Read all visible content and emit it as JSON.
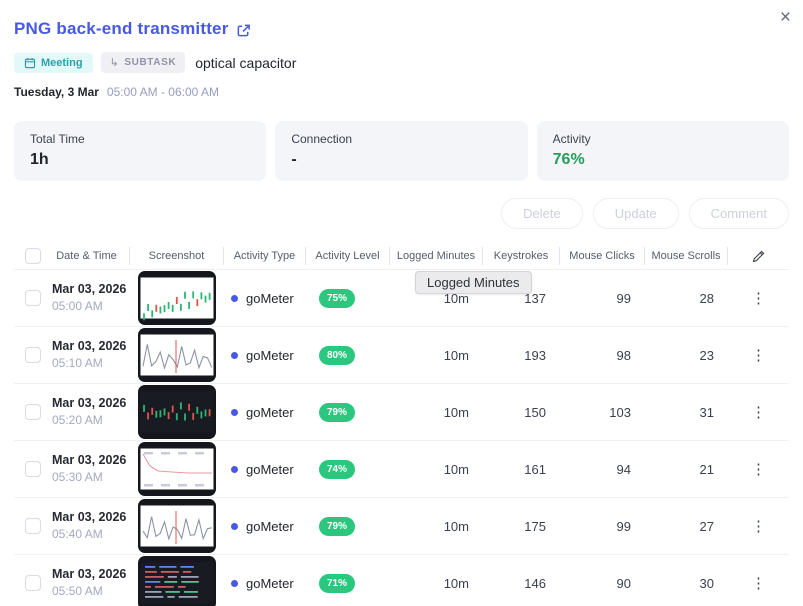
{
  "modal": {
    "title": "PNG back-end transmitter"
  },
  "icons": {
    "close": "×",
    "subtask_arrow": "↳",
    "kebab": "⋮",
    "external_link": "external-link",
    "calendar": "calendar",
    "edit": "pencil"
  },
  "badges": {
    "meeting": "Meeting",
    "subtask": "SUBTASK",
    "subtask_value": "optical capacitor"
  },
  "schedule": {
    "day": "Tuesday, 3 Mar",
    "time_range": "05:00 AM - 06:00 AM"
  },
  "stats": [
    {
      "label": "Total Time",
      "value": "1h"
    },
    {
      "label": "Connection",
      "value": "-"
    },
    {
      "label": "Activity",
      "value": "76%"
    }
  ],
  "actions": {
    "delete": "Delete",
    "update": "Update",
    "comment": "Comment"
  },
  "tooltip": "Logged Minutes",
  "table": {
    "columns": [
      "Date & Time",
      "Screenshot",
      "Activity Type",
      "Activity Level",
      "Logged Minutes",
      "Keystrokes",
      "Mouse Clicks",
      "Mouse Scrolls"
    ],
    "rows": [
      {
        "date": "Mar 03, 2026",
        "time": "05:00 AM",
        "thumb": "light-candlestick-chart",
        "activity_type": "goMeter",
        "activity_level": "75%",
        "logged": "10m",
        "keystrokes": "137",
        "clicks": "99",
        "scrolls": "28"
      },
      {
        "date": "Mar 03, 2026",
        "time": "05:10 AM",
        "thumb": "light-line-chart",
        "activity_type": "goMeter",
        "activity_level": "80%",
        "logged": "10m",
        "keystrokes": "193",
        "clicks": "98",
        "scrolls": "23"
      },
      {
        "date": "Mar 03, 2026",
        "time": "05:20 AM",
        "thumb": "dark-chart",
        "activity_type": "goMeter",
        "activity_level": "79%",
        "logged": "10m",
        "keystrokes": "150",
        "clicks": "103",
        "scrolls": "31"
      },
      {
        "date": "Mar 03, 2026",
        "time": "05:30 AM",
        "thumb": "light-dashboard",
        "activity_type": "goMeter",
        "activity_level": "74%",
        "logged": "10m",
        "keystrokes": "161",
        "clicks": "94",
        "scrolls": "21"
      },
      {
        "date": "Mar 03, 2026",
        "time": "05:40 AM",
        "thumb": "light-line-chart",
        "activity_type": "goMeter",
        "activity_level": "79%",
        "logged": "10m",
        "keystrokes": "175",
        "clicks": "99",
        "scrolls": "27"
      },
      {
        "date": "Mar 03, 2026",
        "time": "05:50 AM",
        "thumb": "dark-terminal",
        "activity_type": "goMeter",
        "activity_level": "71%",
        "logged": "10m",
        "keystrokes": "146",
        "clicks": "90",
        "scrolls": "30"
      }
    ]
  },
  "colors": {
    "accent_blue": "#4759e4",
    "activity_green": "#259d59",
    "pill_green": "#2bc77e",
    "meeting_teal": "#29a3ab"
  }
}
